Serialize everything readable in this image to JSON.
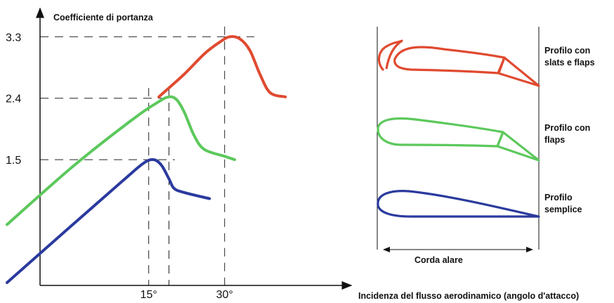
{
  "chart_data": {
    "type": "line",
    "ylabel": "Coefficiente di portanza",
    "xlabel": "Incidenza del flusso aerodinamico (angolo d'attacco)",
    "yticks": [
      {
        "value": 1.5,
        "label": "1.5"
      },
      {
        "value": 2.4,
        "label": "2.4"
      },
      {
        "value": 3.3,
        "label": "3.3"
      }
    ],
    "xticks": [
      {
        "value": 15,
        "label": "15°"
      },
      {
        "value": 30,
        "label": "30°"
      }
    ],
    "xlim": [
      -13,
      56
    ],
    "ylim": [
      -0.3,
      3.55
    ],
    "grid": "dashed reference lines",
    "series": [
      {
        "key": "semplice",
        "color": "#2b3a9e",
        "points": [
          [
            -13,
            -0.3
          ],
          [
            0,
            0.55
          ],
          [
            10,
            1.2
          ],
          [
            14,
            1.45
          ],
          [
            16,
            1.5
          ],
          [
            17.5,
            1.42
          ],
          [
            19,
            1.22
          ],
          [
            20,
            1.08
          ],
          [
            22,
            1.02
          ],
          [
            27,
            0.93
          ]
        ]
      },
      {
        "key": "flaps",
        "color": "#5cc85c",
        "points": [
          [
            -13,
            0.55
          ],
          [
            0,
            1.4
          ],
          [
            12,
            2.1
          ],
          [
            17,
            2.35
          ],
          [
            19,
            2.42
          ],
          [
            20.5,
            2.38
          ],
          [
            22,
            2.2
          ],
          [
            24,
            1.85
          ],
          [
            26,
            1.65
          ],
          [
            30,
            1.55
          ],
          [
            32,
            1.5
          ]
        ]
      },
      {
        "key": "slats-flaps",
        "color": "#e04a30",
        "points": [
          [
            17,
            2.42
          ],
          [
            22,
            2.75
          ],
          [
            26,
            3.05
          ],
          [
            29,
            3.22
          ],
          [
            31,
            3.3
          ],
          [
            33,
            3.27
          ],
          [
            35,
            3.1
          ],
          [
            37,
            2.75
          ],
          [
            39,
            2.48
          ],
          [
            42,
            2.42
          ]
        ]
      }
    ],
    "legend": [
      {
        "series": "slats-flaps",
        "label": "Profilo con\nslats e flaps"
      },
      {
        "series": "flaps",
        "label": "Profilo con\nflaps"
      },
      {
        "series": "semplice",
        "label": "Profilo\nsemplice"
      }
    ],
    "chord_label": "Corda alare"
  }
}
